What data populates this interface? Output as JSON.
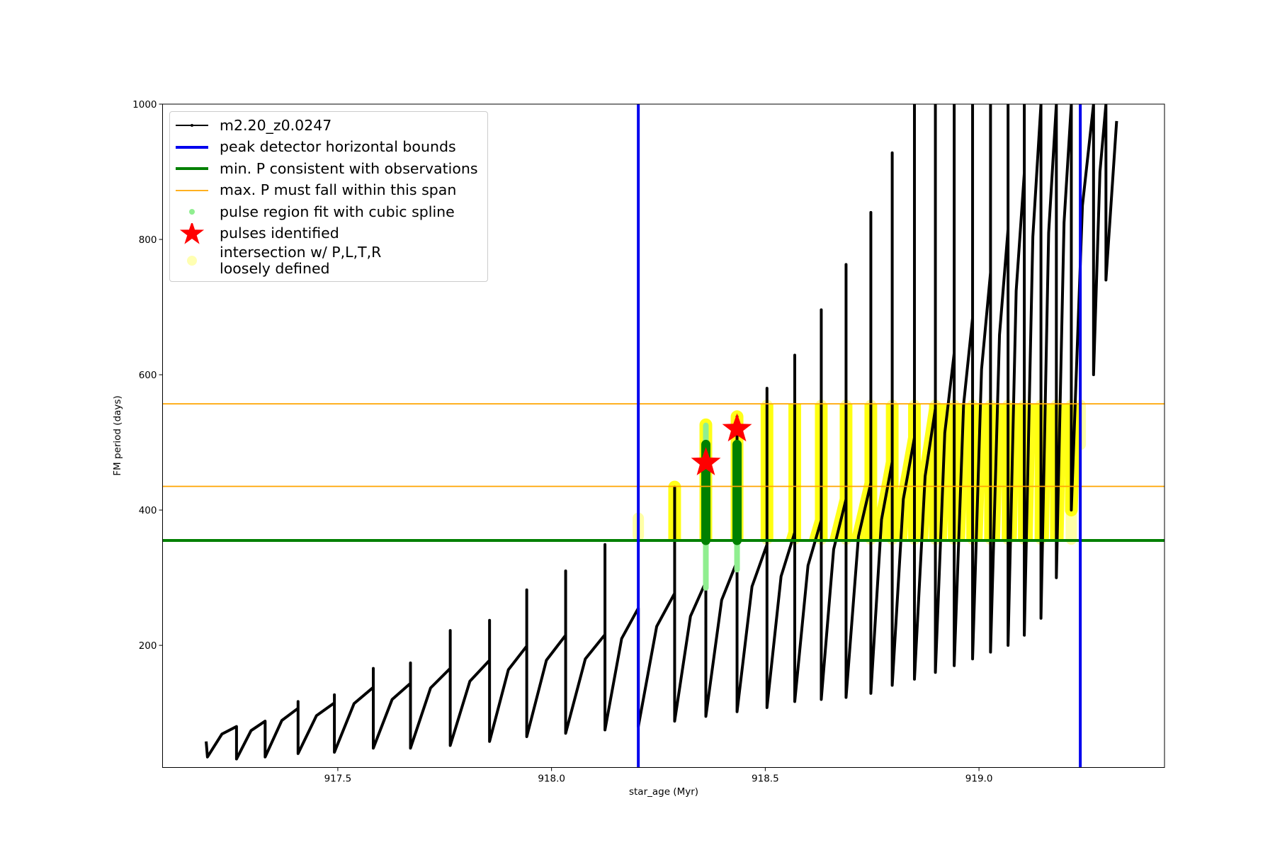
{
  "chart_data": {
    "type": "line",
    "xlabel": "star_age (Myr)",
    "ylabel": "FM period (days)",
    "xlim": [
      917.09,
      919.434
    ],
    "ylim": [
      19.5,
      1000
    ],
    "xticks": [
      917.5,
      {
        "value": 918.0,
        "label": "918.0"
      },
      918.5,
      {
        "value": 919.0,
        "label": "919.0"
      }
    ],
    "yticks": [
      200,
      400,
      600,
      800,
      1000
    ],
    "legend": "upper left",
    "series": [
      {
        "name": "m2.20_z0.0247",
        "color": "#000000",
        "x": [
          917.192,
          917.195,
          917.229,
          917.263,
          917.263,
          917.297,
          917.33,
          917.33,
          917.369,
          917.407,
          917.407,
          917.407,
          917.45,
          917.492,
          917.492,
          917.492,
          917.538,
          917.583,
          917.583,
          917.583,
          917.627,
          917.67,
          917.67,
          917.67,
          917.717,
          917.763,
          917.763,
          917.763,
          917.809,
          917.855,
          917.855,
          917.855,
          917.899,
          917.942,
          917.942,
          917.942,
          917.988,
          918.033,
          918.033,
          918.033,
          918.079,
          918.125,
          918.125,
          918.125,
          918.164,
          918.203,
          918.203,
          918.246,
          918.288,
          918.288,
          918.288,
          918.325,
          918.361,
          918.361,
          918.361,
          918.398,
          918.434,
          918.434,
          918.434,
          918.469,
          918.504,
          918.504,
          918.504,
          918.537,
          918.569,
          918.569,
          918.569,
          918.6,
          918.631,
          918.631,
          918.631,
          918.66,
          918.689,
          918.689,
          918.689,
          918.718,
          918.747,
          918.747,
          918.747,
          918.772,
          918.797,
          918.797,
          918.797,
          918.823,
          918.849,
          918.849,
          918.849,
          918.874,
          918.898,
          918.898,
          918.898,
          918.92,
          918.942,
          918.942,
          918.942,
          918.964,
          918.985,
          918.985,
          918.985,
          919.006,
          919.027,
          919.027,
          919.027,
          919.048,
          919.068,
          919.068,
          919.068,
          919.087,
          919.106,
          919.106,
          919.106,
          919.126,
          919.145,
          919.145,
          919.163,
          919.181,
          919.181,
          919.199,
          919.216,
          919.216,
          919.242,
          919.268,
          919.268,
          919.283,
          919.297,
          919.297,
          919.322
        ],
        "values": [
          58,
          35,
          69,
          80,
          32,
          74,
          88,
          35,
          89,
          107,
          117,
          40,
          96,
          115,
          127,
          42,
          114,
          138,
          166,
          48,
          120,
          144,
          174,
          48,
          137,
          166,
          222,
          52,
          147,
          178,
          237,
          58,
          164,
          199,
          282,
          65,
          178,
          215,
          310,
          70,
          180,
          216,
          349,
          75,
          210,
          255,
          80,
          228,
          277,
          434,
          88,
          243,
          294,
          526,
          95,
          267,
          324,
          538,
          102,
          287,
          349,
          580,
          108,
          302,
          367,
          629,
          117,
          318,
          385,
          696,
          120,
          342,
          416,
          763,
          123,
          361,
          440,
          840,
          129,
          386,
          471,
          928,
          141,
          416,
          507,
          1000,
          150,
          450,
          550,
          1000,
          160,
          514,
          632,
          1000,
          170,
          556,
          684,
          1000,
          180,
          608,
          751,
          1000,
          190,
          659,
          815,
          1000,
          200,
          724,
          898,
          1000,
          215,
          804,
          1000,
          240,
          810,
          1000,
          300,
          825,
          1000,
          400,
          850,
          1000,
          600,
          900,
          1000,
          740,
          975
        ]
      }
    ],
    "bounds": {
      "name": "peak detector horizontal bounds",
      "color": "#0000ee",
      "x": [
        918.203,
        919.237
      ]
    },
    "min_period": {
      "name": "min. P consistent with observations",
      "color": "#008000",
      "value": 355
    },
    "max_period_span": {
      "name": "max. P must fall within this span",
      "color": "#ffa500",
      "values": [
        435,
        557
      ]
    },
    "pulse_regions": {
      "name": "pulse region fit with cubic spline",
      "color": "#90ee90",
      "fit_color": "#008000",
      "x": [
        918.361,
        918.434
      ],
      "low": [
        285,
        312
      ],
      "high": [
        525,
        497
      ]
    },
    "pulses": {
      "name": "pulses identified",
      "color": "#ff0000",
      "x": [
        918.361,
        918.434
      ],
      "values": [
        470,
        520
      ]
    },
    "intersections": {
      "name": "intersection w/ P,L,T,R\nloosely defined",
      "color": "#ffff00",
      "x": [
        918.203,
        918.288,
        918.504,
        918.569,
        918.631,
        918.689,
        918.747,
        918.797,
        918.849,
        918.898,
        918.942,
        918.985,
        919.027,
        919.068,
        919.106,
        919.145,
        919.181,
        919.216,
        919.237
      ],
      "low": [
        360,
        360,
        355,
        355,
        355,
        355,
        355,
        355,
        355,
        355,
        355,
        355,
        355,
        355,
        355,
        355,
        375,
        355,
        495
      ],
      "high": [
        390,
        425,
        557,
        550,
        557,
        557,
        557,
        557,
        557,
        557,
        557,
        557,
        557,
        557,
        557,
        557,
        557,
        557,
        557
      ]
    }
  }
}
